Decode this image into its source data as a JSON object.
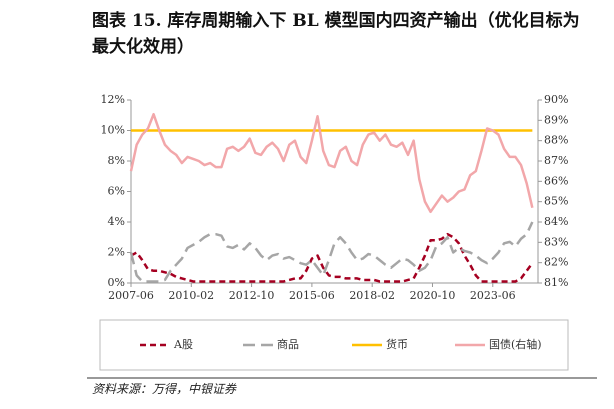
{
  "chart_data": {
    "type": "line",
    "title": "图表 15. 库存周期输入下 BL 模型国内四资产输出（优化目标为最大化效用）",
    "x": [
      "2007-06",
      "2007-09",
      "2007-12",
      "2008-03",
      "2008-06",
      "2008-09",
      "2008-12",
      "2009-03",
      "2009-06",
      "2009-09",
      "2009-12",
      "2010-03",
      "2010-06",
      "2010-09",
      "2010-12",
      "2011-03",
      "2011-06",
      "2011-09",
      "2011-12",
      "2012-03",
      "2012-06",
      "2012-09",
      "2012-12",
      "2013-03",
      "2013-06",
      "2013-09",
      "2013-12",
      "2014-03",
      "2014-06",
      "2014-09",
      "2014-12",
      "2015-03",
      "2015-06",
      "2015-09",
      "2015-12",
      "2016-03",
      "2016-06",
      "2016-09",
      "2016-12",
      "2017-03",
      "2017-06",
      "2017-09",
      "2017-12",
      "2018-03",
      "2018-06",
      "2018-09",
      "2018-12",
      "2019-03",
      "2019-06",
      "2019-09",
      "2019-12",
      "2020-03",
      "2020-06",
      "2020-09",
      "2020-12",
      "2021-03",
      "2021-06",
      "2021-09",
      "2021-12",
      "2022-03",
      "2022-06",
      "2022-09",
      "2022-12",
      "2023-03",
      "2023-06",
      "2023-09",
      "2023-12",
      "2024-03",
      "2024-06",
      "2024-09",
      "2024-12",
      "2025-03"
    ],
    "xlim": [
      "2007-06",
      "2025-06"
    ],
    "xticks": [
      "2007-06",
      "2010-02",
      "2012-10",
      "2015-06",
      "2018-02",
      "2020-10",
      "2023-06"
    ],
    "ylim": [
      0,
      12
    ],
    "yticks": [
      {
        "value": 0,
        "label": "0%"
      },
      {
        "value": 2,
        "label": "2%"
      },
      {
        "value": 4,
        "label": "4%"
      },
      {
        "value": 6,
        "label": "6%"
      },
      {
        "value": 8,
        "label": "8%"
      },
      {
        "value": 10,
        "label": "10%"
      },
      {
        "value": 12,
        "label": "12%"
      }
    ],
    "y2lim": [
      81,
      90
    ],
    "y2ticks": [
      {
        "value": 81,
        "label": "81%"
      },
      {
        "value": 82,
        "label": "82%"
      },
      {
        "value": 83,
        "label": "83%"
      },
      {
        "value": 84,
        "label": "84%"
      },
      {
        "value": 85,
        "label": "85%"
      },
      {
        "value": 86,
        "label": "86%"
      },
      {
        "value": 87,
        "label": "87%"
      },
      {
        "value": 88,
        "label": "88%"
      },
      {
        "value": 89,
        "label": "89%"
      },
      {
        "value": 90,
        "label": "90%"
      }
    ],
    "legend": "bottom",
    "series": [
      {
        "name": "A股",
        "color": "#a50021",
        "line_style": "dashed",
        "values": [
          1.8,
          2.0,
          1.5,
          0.9,
          0.8,
          0.8,
          0.7,
          0.6,
          0.4,
          0.3,
          0.2,
          0.1,
          0.1,
          0.1,
          0.1,
          0.1,
          0.1,
          0.1,
          0.1,
          0.1,
          0.1,
          0.1,
          0.1,
          0.1,
          0.1,
          0.1,
          0.1,
          0.1,
          0.2,
          0.3,
          0.3,
          0.8,
          1.6,
          1.8,
          1.0,
          0.5,
          0.4,
          0.4,
          0.3,
          0.3,
          0.3,
          0.2,
          0.2,
          0.2,
          0.1,
          0.1,
          0.1,
          0.1,
          0.1,
          0.2,
          0.3,
          1.0,
          1.8,
          2.8,
          2.8,
          2.9,
          3.2,
          3.0,
          2.6,
          1.8,
          1.2,
          0.5,
          0.1,
          0.1,
          0.1,
          0.1,
          0.1,
          0.1,
          0.1,
          0.3,
          0.8,
          1.3
        ]
      },
      {
        "name": "商品",
        "color": "#a6a6a6",
        "line_style": "long-dashed",
        "values": [
          2.0,
          0.5,
          0.1,
          0.1,
          0.1,
          0.1,
          0.2,
          0.8,
          1.2,
          1.6,
          2.3,
          2.5,
          2.7,
          3.0,
          3.2,
          3.2,
          3.1,
          2.4,
          2.3,
          2.5,
          2.2,
          2.6,
          2.3,
          1.8,
          1.5,
          1.8,
          1.9,
          1.6,
          1.7,
          1.5,
          1.3,
          1.2,
          1.5,
          1.0,
          0.5,
          1.5,
          2.6,
          3.0,
          2.6,
          2.0,
          1.5,
          1.6,
          1.9,
          1.8,
          1.5,
          1.2,
          1.0,
          1.3,
          1.6,
          1.5,
          1.2,
          0.8,
          1.0,
          1.5,
          2.4,
          2.6,
          3.0,
          2.0,
          2.3,
          2.1,
          2.0,
          1.8,
          1.5,
          1.3,
          1.6,
          2.0,
          2.6,
          2.7,
          2.4,
          2.9,
          3.2,
          4.0
        ]
      },
      {
        "name": "货币",
        "color": "#ffc000",
        "line_style": "solid",
        "values": [
          10,
          10,
          10,
          10,
          10,
          10,
          10,
          10,
          10,
          10,
          10,
          10,
          10,
          10,
          10,
          10,
          10,
          10,
          10,
          10,
          10,
          10,
          10,
          10,
          10,
          10,
          10,
          10,
          10,
          10,
          10,
          10,
          10,
          10,
          10,
          10,
          10,
          10,
          10,
          10,
          10,
          10,
          10,
          10,
          10,
          10,
          10,
          10,
          10,
          10,
          10,
          10,
          10,
          10,
          10,
          10,
          10,
          10,
          10,
          10,
          10,
          10,
          10,
          10,
          10,
          10,
          10,
          10,
          10,
          10,
          10,
          10
        ]
      },
      {
        "name": "国债(右轴)",
        "color": "#f2a7aa",
        "line_style": "solid",
        "axis": "y2",
        "values": [
          86.5,
          87.8,
          88.3,
          88.6,
          89.3,
          88.5,
          87.8,
          87.5,
          87.3,
          86.9,
          87.2,
          87.1,
          87.0,
          86.8,
          86.9,
          86.7,
          86.7,
          87.6,
          87.7,
          87.5,
          87.7,
          88.1,
          87.4,
          87.3,
          87.7,
          87.9,
          87.6,
          87.0,
          87.8,
          88.0,
          87.2,
          86.9,
          88.0,
          89.2,
          87.5,
          86.8,
          86.7,
          87.5,
          87.7,
          87.0,
          86.8,
          87.8,
          88.3,
          88.4,
          88.0,
          88.3,
          87.8,
          87.7,
          87.9,
          87.3,
          88.0,
          86.1,
          85.0,
          84.5,
          84.9,
          85.3,
          85.0,
          85.2,
          85.5,
          85.6,
          86.3,
          86.5,
          87.5,
          88.6,
          88.5,
          88.3,
          87.6,
          87.2,
          87.2,
          86.8,
          85.9,
          84.7
        ]
      }
    ]
  },
  "source": "资料来源：万得，中银证券"
}
